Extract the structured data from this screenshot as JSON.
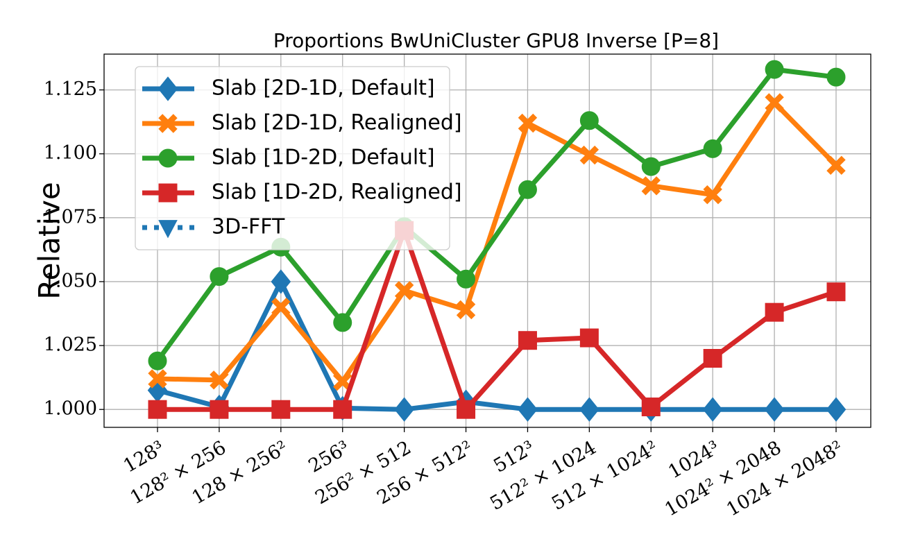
{
  "chart_data": {
    "type": "line",
    "title": "Proportions BwUniCluster GPU8 Inverse [P=8]",
    "y_label": "Relative",
    "categories": [
      "128³",
      "128² × 256",
      "128 × 256²",
      "256³",
      "256² × 512",
      "256 × 512²",
      "512³",
      "512² × 1024",
      "512 × 1024²",
      "1024³",
      "1024² × 2048",
      "1024 × 2048²"
    ],
    "series": [
      {
        "name": "Slab [2D-1D, Default]",
        "color": "#1f77b4",
        "marker": "diamond",
        "values": [
          1.0075,
          1.001,
          1.05,
          1.0005,
          1.0,
          1.003,
          1.0,
          1.0,
          1.0,
          1.0,
          1.0,
          1.0
        ]
      },
      {
        "name": "Slab [2D-1D, Realigned]",
        "color": "#ff7f0e",
        "marker": "x",
        "values": [
          1.012,
          1.0115,
          1.04,
          1.011,
          1.0465,
          1.039,
          1.112,
          1.0995,
          1.0875,
          1.084,
          1.12,
          1.0955
        ]
      },
      {
        "name": "Slab [1D-2D, Default]",
        "color": "#2ca02c",
        "marker": "circle",
        "values": [
          1.019,
          1.052,
          1.0635,
          1.034,
          1.0715,
          1.051,
          1.086,
          1.113,
          1.095,
          1.102,
          1.133,
          1.13
        ]
      },
      {
        "name": "Slab [1D-2D, Realigned]",
        "color": "#d62728",
        "marker": "square",
        "values": [
          1.0,
          1.0,
          1.0,
          1.0,
          1.07,
          1.0,
          1.027,
          1.028,
          1.001,
          1.02,
          1.038,
          1.046
        ]
      },
      {
        "name": "3D-FFT",
        "color": "#1f77b4",
        "marker": "triangle-down",
        "dashed": true,
        "values": [
          null,
          null,
          null,
          null,
          null,
          null,
          null,
          null,
          null,
          null,
          null,
          null
        ]
      }
    ],
    "ylim": [
      0.993,
      1.139
    ],
    "yticks": [
      {
        "value": 1.0,
        "label": "1.000"
      },
      {
        "value": 1.025,
        "label": "1.025"
      },
      {
        "value": 1.05,
        "label": "1.050"
      },
      {
        "value": 1.075,
        "label": "1.075"
      },
      {
        "value": 1.1,
        "label": "1.100"
      },
      {
        "value": 1.125,
        "label": "1.125"
      }
    ],
    "grid": true,
    "legend": "upper left"
  }
}
